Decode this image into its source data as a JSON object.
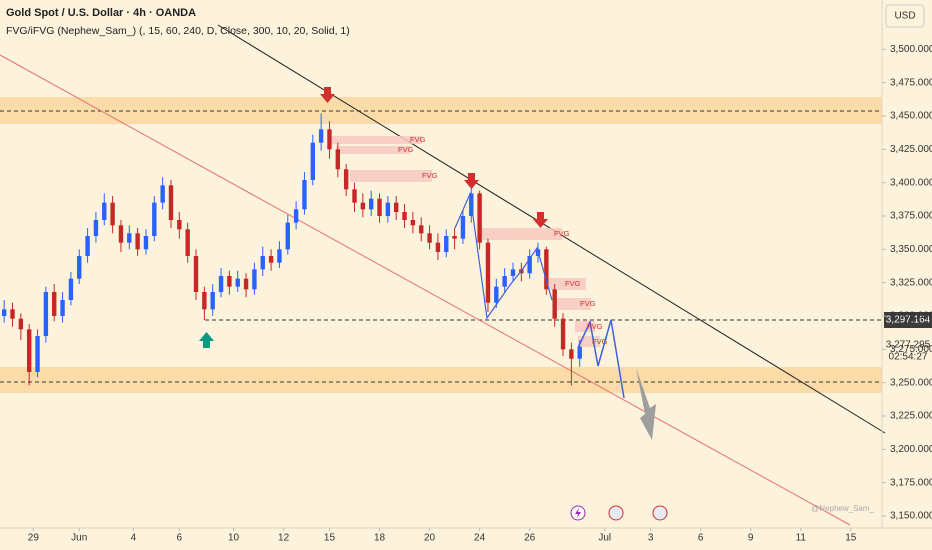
{
  "chart_data": {
    "type": "candlestick",
    "title": "Gold Spot / U.S. Dollar · 4h · OANDA",
    "subtitle": "FVG/iFVG (Nephew_Sam_) (, 15, 60, 240, D, Close, 300, 10, 20, Solid, 1)",
    "currency": "USD",
    "level_label": "3,297.164",
    "last_price_label": "3,277.295",
    "countdown": "02:54:27",
    "watermark": "@Nephew_Sam_",
    "annotations": [
      "FVG",
      "FVG",
      "FVG",
      "FVG",
      "FVG",
      "FVG",
      "FVG",
      "FVG"
    ],
    "up_color": "#2962ff",
    "down_color": "#c62828",
    "xlim": [
      0,
      211
    ],
    "ylim": [
      3141,
      3537
    ],
    "xticks": [
      {
        "value": 8,
        "label": "29"
      },
      {
        "value": 19,
        "label": "Jun"
      },
      {
        "value": 32,
        "label": "4"
      },
      {
        "value": 43,
        "label": "6"
      },
      {
        "value": 56,
        "label": "10"
      },
      {
        "value": 68,
        "label": "12"
      },
      {
        "value": 79,
        "label": "15"
      },
      {
        "value": 91,
        "label": "18"
      },
      {
        "value": 103,
        "label": "20"
      },
      {
        "value": 115,
        "label": "24"
      },
      {
        "value": 127,
        "label": "26"
      },
      {
        "value": 145,
        "label": "Jul"
      },
      {
        "value": 156,
        "label": "3"
      },
      {
        "value": 168,
        "label": "6"
      },
      {
        "value": 180,
        "label": "9"
      },
      {
        "value": 192,
        "label": "11"
      },
      {
        "value": 204,
        "label": "15"
      }
    ],
    "yticks": [
      {
        "value": 3150,
        "label": "3,150.000"
      },
      {
        "value": 3175,
        "label": "3,175.000"
      },
      {
        "value": 3200,
        "label": "3,200.000"
      },
      {
        "value": 3225,
        "label": "3,225.000"
      },
      {
        "value": 3250,
        "label": "3,250.000"
      },
      {
        "value": 3275,
        "label": "3,275.000"
      },
      {
        "value": 3300,
        "label": "3,300.000"
      },
      {
        "value": 3325,
        "label": "3,325.000"
      },
      {
        "value": 3350,
        "label": "3,350.000"
      },
      {
        "value": 3375,
        "label": "3,375.000"
      },
      {
        "value": 3400,
        "label": "3,400.000"
      },
      {
        "value": 3425,
        "label": "3,425.000"
      },
      {
        "value": 3450,
        "label": "3,450.000"
      },
      {
        "value": 3475,
        "label": "3,475.000"
      },
      {
        "value": 3500,
        "label": "3,500.000"
      }
    ],
    "x": [
      1,
      3,
      5,
      7,
      9,
      11,
      13,
      15,
      17,
      19,
      21,
      23,
      25,
      27,
      29,
      31,
      33,
      35,
      37,
      39,
      41,
      43,
      45,
      47,
      49,
      51,
      53,
      55,
      57,
      59,
      61,
      63,
      65,
      67,
      69,
      71,
      73,
      75,
      77,
      79,
      81,
      83,
      85,
      87,
      89,
      91,
      93,
      95,
      97,
      99,
      101,
      103,
      105,
      107,
      109,
      111,
      113,
      115,
      117,
      119,
      121,
      123,
      125,
      127,
      129,
      131,
      133,
      135,
      137,
      139
    ],
    "open": [
      3300,
      3305,
      3298,
      3290,
      3258,
      3285,
      3318,
      3300,
      3312,
      3328,
      3345,
      3360,
      3372,
      3385,
      3368,
      3355,
      3362,
      3350,
      3360,
      3385,
      3398,
      3372,
      3365,
      3345,
      3318,
      3305,
      3318,
      3330,
      3322,
      3328,
      3320,
      3335,
      3345,
      3340,
      3350,
      3370,
      3380,
      3402,
      3430,
      3440,
      3425,
      3410,
      3395,
      3385,
      3380,
      3388,
      3375,
      3385,
      3378,
      3372,
      3368,
      3362,
      3355,
      3348,
      3360,
      3358,
      3375,
      3392,
      3355,
      3310,
      3322,
      3330,
      3335,
      3332,
      3345,
      3350,
      3320,
      3298,
      3275,
      3268
    ],
    "high": [
      3312,
      3310,
      3302,
      3294,
      3290,
      3322,
      3324,
      3318,
      3333,
      3350,
      3366,
      3378,
      3392,
      3390,
      3372,
      3368,
      3366,
      3365,
      3390,
      3404,
      3402,
      3378,
      3370,
      3350,
      3322,
      3324,
      3336,
      3334,
      3334,
      3332,
      3340,
      3352,
      3350,
      3356,
      3376,
      3386,
      3408,
      3436,
      3452,
      3446,
      3430,
      3414,
      3400,
      3392,
      3394,
      3392,
      3390,
      3390,
      3384,
      3378,
      3374,
      3368,
      3362,
      3365,
      3366,
      3380,
      3398,
      3394,
      3358,
      3328,
      3336,
      3340,
      3340,
      3350,
      3355,
      3352,
      3324,
      3302,
      3280,
      3282
    ],
    "low": [
      3295,
      3292,
      3282,
      3248,
      3254,
      3280,
      3296,
      3295,
      3308,
      3324,
      3340,
      3355,
      3368,
      3362,
      3348,
      3350,
      3345,
      3346,
      3356,
      3380,
      3366,
      3358,
      3340,
      3312,
      3297,
      3300,
      3314,
      3316,
      3318,
      3314,
      3316,
      3330,
      3334,
      3336,
      3346,
      3365,
      3376,
      3398,
      3424,
      3418,
      3404,
      3390,
      3378,
      3374,
      3375,
      3370,
      3370,
      3372,
      3366,
      3362,
      3356,
      3350,
      3342,
      3344,
      3350,
      3354,
      3370,
      3350,
      3303,
      3306,
      3318,
      3326,
      3326,
      3328,
      3340,
      3316,
      3292,
      3270,
      3248,
      3262
    ],
    "close": [
      3305,
      3298,
      3290,
      3258,
      3285,
      3318,
      3300,
      3312,
      3328,
      3345,
      3360,
      3372,
      3385,
      3368,
      3355,
      3362,
      3350,
      3360,
      3385,
      3398,
      3372,
      3365,
      3345,
      3318,
      3305,
      3318,
      3330,
      3322,
      3328,
      3320,
      3335,
      3345,
      3340,
      3350,
      3370,
      3380,
      3402,
      3430,
      3440,
      3425,
      3410,
      3395,
      3385,
      3380,
      3388,
      3375,
      3385,
      3378,
      3372,
      3368,
      3362,
      3355,
      3348,
      3360,
      3358,
      3375,
      3392,
      3355,
      3310,
      3322,
      3330,
      3335,
      3332,
      3345,
      3350,
      3320,
      3298,
      3275,
      3268,
      3277
    ]
  }
}
